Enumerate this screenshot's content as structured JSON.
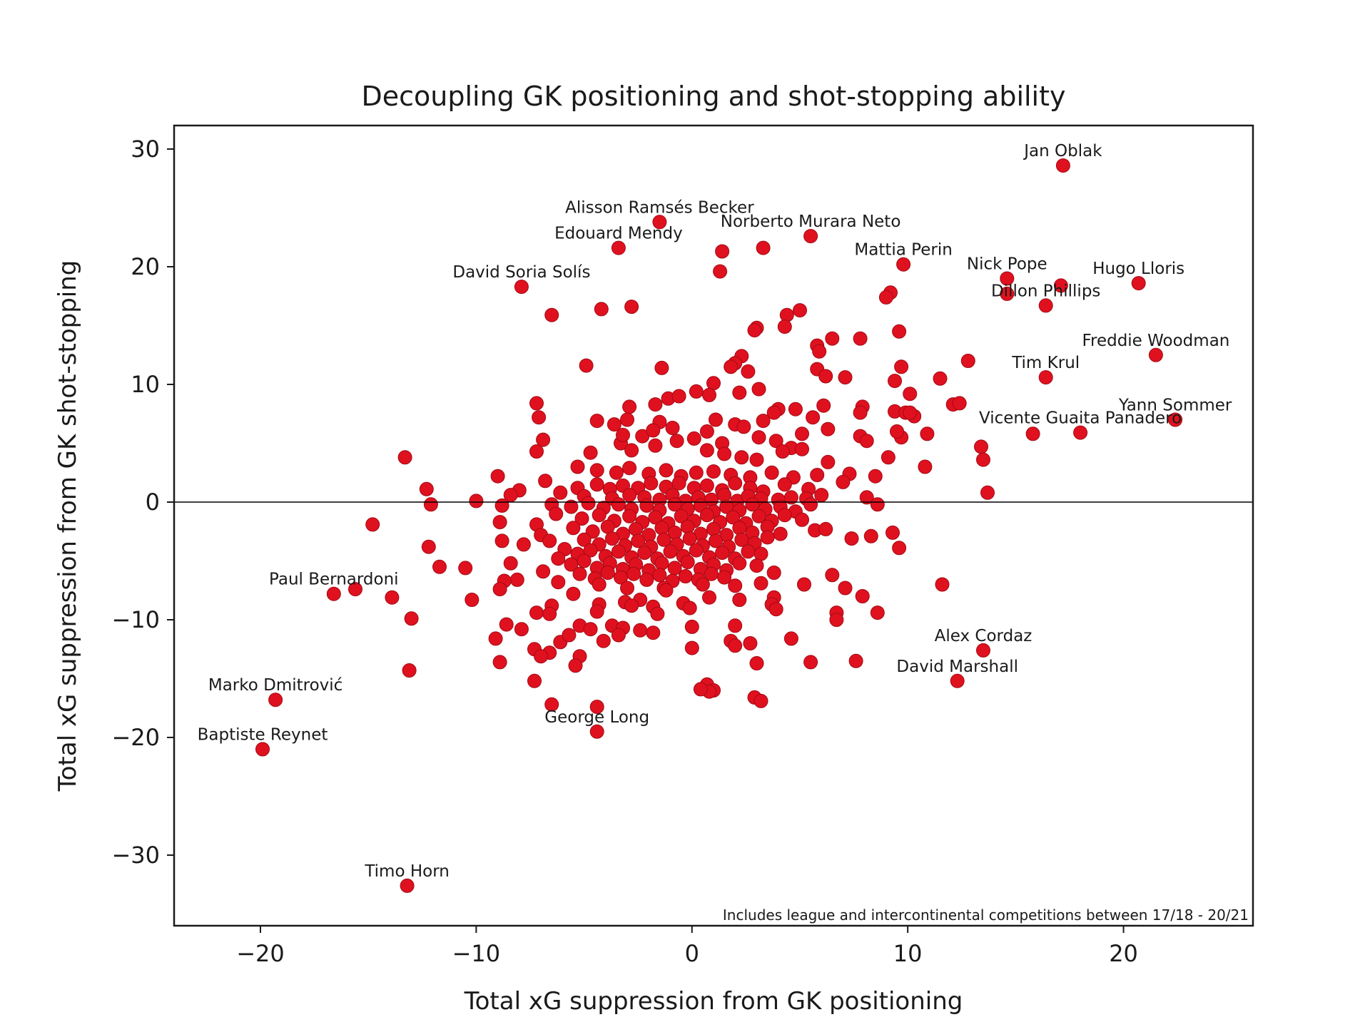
{
  "chart_data": {
    "type": "scatter",
    "title": "Decoupling GK positioning and shot-stopping ability",
    "xlabel": "Total xG suppression from GK positioning",
    "ylabel": "Total xG suppression from GK shot-stopping",
    "xlim": [
      -24,
      26
    ],
    "ylim": [
      -36,
      32
    ],
    "x_ticks": [
      -20,
      -10,
      0,
      10,
      20
    ],
    "y_ticks": [
      -30,
      -20,
      -10,
      0,
      10,
      20,
      30
    ],
    "x_tick_labels": [
      "−20",
      "−10",
      "0",
      "10",
      "20"
    ],
    "y_tick_labels": [
      "−30",
      "−20",
      "−10",
      "0",
      "10",
      "20",
      "30"
    ],
    "reference_line_y": 0,
    "note": "Includes league and intercontinental competitions between 17/18 - 20/21",
    "grid": false,
    "marker_color": "#e0111f",
    "marker_edge_color": "#a10a14",
    "labeled_points": [
      {
        "name": "Jan Oblak",
        "x": 17.2,
        "y": 28.6
      },
      {
        "name": "Alisson Ramsés Becker",
        "x": -1.5,
        "y": 23.8
      },
      {
        "name": "Norberto Murara Neto",
        "x": 5.5,
        "y": 22.6
      },
      {
        "name": "Edouard Mendy",
        "x": -3.4,
        "y": 21.6
      },
      {
        "name": "Mattia Perin",
        "x": 9.8,
        "y": 20.2
      },
      {
        "name": "Nick Pope",
        "x": 14.6,
        "y": 19.0
      },
      {
        "name": "Hugo Lloris",
        "x": 20.7,
        "y": 18.6
      },
      {
        "name": "David Soria Solís",
        "x": -7.9,
        "y": 18.3
      },
      {
        "name": "Dillon Phillips",
        "x": 16.4,
        "y": 16.7
      },
      {
        "name": "Freddie Woodman",
        "x": 21.5,
        "y": 12.5
      },
      {
        "name": "Tim Krul",
        "x": 16.4,
        "y": 10.6
      },
      {
        "name": "Yann Sommer",
        "x": 22.4,
        "y": 7.0
      },
      {
        "name": "Vicente Guaita Panadero",
        "x": 18.0,
        "y": 5.9
      },
      {
        "name": "Paul Bernardoni",
        "x": -16.6,
        "y": -7.8
      },
      {
        "name": "Alex Cordaz",
        "x": 13.5,
        "y": -12.6
      },
      {
        "name": "David Marshall",
        "x": 12.3,
        "y": -15.2
      },
      {
        "name": "Marko Dmitrović",
        "x": -19.3,
        "y": -16.8
      },
      {
        "name": "George Long",
        "x": -4.4,
        "y": -19.5
      },
      {
        "name": "Baptiste Reynet",
        "x": -19.9,
        "y": -21.0
      },
      {
        "name": "Timo Horn",
        "x": -13.2,
        "y": -32.6
      }
    ],
    "points": [
      [
        17.2,
        28.6
      ],
      [
        -1.5,
        23.8
      ],
      [
        5.5,
        22.6
      ],
      [
        -3.4,
        21.6
      ],
      [
        1.4,
        21.3
      ],
      [
        3.3,
        21.6
      ],
      [
        9.8,
        20.2
      ],
      [
        1.3,
        19.6
      ],
      [
        14.6,
        19.0
      ],
      [
        20.7,
        18.6
      ],
      [
        -7.9,
        18.3
      ],
      [
        17.1,
        18.4
      ],
      [
        14.6,
        17.7
      ],
      [
        9.2,
        17.8
      ],
      [
        9.0,
        17.4
      ],
      [
        16.4,
        16.7
      ],
      [
        -6.5,
        15.9
      ],
      [
        -4.2,
        16.4
      ],
      [
        -2.8,
        16.6
      ],
      [
        4.4,
        15.9
      ],
      [
        5.0,
        16.3
      ],
      [
        4.3,
        14.9
      ],
      [
        3.0,
        14.8
      ],
      [
        2.9,
        14.6
      ],
      [
        9.6,
        14.5
      ],
      [
        5.8,
        13.3
      ],
      [
        5.9,
        12.8
      ],
      [
        6.5,
        13.9
      ],
      [
        7.8,
        13.9
      ],
      [
        21.5,
        12.5
      ],
      [
        2.3,
        12.4
      ],
      [
        2.0,
        11.8
      ],
      [
        1.8,
        11.5
      ],
      [
        2.6,
        11.1
      ],
      [
        -1.4,
        11.4
      ],
      [
        -4.9,
        11.6
      ],
      [
        9.7,
        11.5
      ],
      [
        12.8,
        12.0
      ],
      [
        5.8,
        11.3
      ],
      [
        6.2,
        10.7
      ],
      [
        7.1,
        10.6
      ],
      [
        16.4,
        10.6
      ],
      [
        11.5,
        10.5
      ],
      [
        1.0,
        10.1
      ],
      [
        3.1,
        9.6
      ],
      [
        2.2,
        9.3
      ],
      [
        9.4,
        10.3
      ],
      [
        10.1,
        9.2
      ],
      [
        -1.1,
        8.8
      ],
      [
        -0.6,
        9.0
      ],
      [
        0.2,
        9.4
      ],
      [
        0.8,
        9.1
      ],
      [
        -1.7,
        8.3
      ],
      [
        -2.9,
        8.1
      ],
      [
        -7.2,
        8.4
      ],
      [
        4.0,
        7.9
      ],
      [
        3.8,
        7.6
      ],
      [
        4.8,
        7.9
      ],
      [
        5.6,
        7.2
      ],
      [
        6.1,
        8.2
      ],
      [
        7.9,
        8.1
      ],
      [
        7.8,
        7.6
      ],
      [
        9.4,
        7.7
      ],
      [
        9.9,
        7.6
      ],
      [
        10.3,
        7.3
      ],
      [
        10.1,
        7.6
      ],
      [
        12.1,
        8.3
      ],
      [
        12.4,
        8.4
      ],
      [
        -7.1,
        7.2
      ],
      [
        -4.4,
        6.9
      ],
      [
        -3.6,
        6.6
      ],
      [
        -3.0,
        7.0
      ],
      [
        -1.5,
        6.8
      ],
      [
        1.1,
        7.0
      ],
      [
        2.0,
        6.6
      ],
      [
        2.4,
        6.4
      ],
      [
        3.3,
        6.9
      ],
      [
        22.4,
        7.0
      ],
      [
        6.3,
        6.2
      ],
      [
        7.8,
        5.6
      ],
      [
        8.1,
        5.2
      ],
      [
        -6.9,
        5.3
      ],
      [
        -3.3,
        5.0
      ],
      [
        -3.2,
        5.7
      ],
      [
        -2.3,
        5.6
      ],
      [
        -1.8,
        6.1
      ],
      [
        -0.9,
        6.3
      ],
      [
        -0.7,
        5.2
      ],
      [
        0.1,
        5.4
      ],
      [
        0.7,
        6.0
      ],
      [
        1.4,
        5.0
      ],
      [
        3.1,
        5.5
      ],
      [
        3.9,
        5.2
      ],
      [
        4.6,
        4.6
      ],
      [
        5.1,
        5.8
      ],
      [
        9.7,
        5.5
      ],
      [
        9.5,
        6.0
      ],
      [
        10.9,
        5.8
      ],
      [
        15.8,
        5.8
      ],
      [
        18.0,
        5.9
      ],
      [
        -4.7,
        4.2
      ],
      [
        -7.2,
        4.3
      ],
      [
        -2.8,
        4.4
      ],
      [
        -1.7,
        4.8
      ],
      [
        0.7,
        4.4
      ],
      [
        1.5,
        4.1
      ],
      [
        2.3,
        3.8
      ],
      [
        3.0,
        3.6
      ],
      [
        4.2,
        4.3
      ],
      [
        5.1,
        4.5
      ],
      [
        6.3,
        3.4
      ],
      [
        9.1,
        3.8
      ],
      [
        10.8,
        3.0
      ],
      [
        13.4,
        4.7
      ],
      [
        13.5,
        3.6
      ],
      [
        -13.3,
        3.8
      ],
      [
        -5.3,
        3.0
      ],
      [
        -4.4,
        2.7
      ],
      [
        -3.5,
        2.5
      ],
      [
        -2.9,
        2.9
      ],
      [
        -2.0,
        2.4
      ],
      [
        -1.2,
        2.7
      ],
      [
        -0.5,
        2.2
      ],
      [
        0.2,
        2.5
      ],
      [
        1.0,
        2.6
      ],
      [
        1.8,
        2.3
      ],
      [
        2.7,
        2.1
      ],
      [
        3.7,
        2.5
      ],
      [
        4.7,
        2.1
      ],
      [
        5.8,
        2.3
      ],
      [
        7.3,
        2.4
      ],
      [
        7.0,
        1.7
      ],
      [
        8.5,
        2.2
      ],
      [
        -9.0,
        2.2
      ],
      [
        -6.8,
        1.8
      ],
      [
        -5.3,
        1.2
      ],
      [
        -4.4,
        1.5
      ],
      [
        -3.8,
        1.1
      ],
      [
        -3.2,
        1.4
      ],
      [
        -2.5,
        1.2
      ],
      [
        -1.9,
        1.6
      ],
      [
        -1.2,
        1.3
      ],
      [
        -0.6,
        1.6
      ],
      [
        0.1,
        1.2
      ],
      [
        0.7,
        1.4
      ],
      [
        1.4,
        1.0
      ],
      [
        2.0,
        1.6
      ],
      [
        2.7,
        1.2
      ],
      [
        3.3,
        0.9
      ],
      [
        4.3,
        1.5
      ],
      [
        5.4,
        1.1
      ],
      [
        6.0,
        0.6
      ],
      [
        -12.3,
        1.1
      ],
      [
        -8.0,
        1.0
      ],
      [
        -8.4,
        0.6
      ],
      [
        -6.1,
        0.8
      ],
      [
        -5.0,
        0.5
      ],
      [
        -3.7,
        0.3
      ],
      [
        -2.9,
        0.6
      ],
      [
        -2.2,
        0.4
      ],
      [
        -1.5,
        0.2
      ],
      [
        -0.9,
        0.6
      ],
      [
        -0.3,
        0.1
      ],
      [
        0.3,
        0.4
      ],
      [
        0.9,
        0.2
      ],
      [
        1.5,
        0.6
      ],
      [
        2.1,
        0.1
      ],
      [
        2.6,
        0.5
      ],
      [
        3.2,
        0.3
      ],
      [
        4.0,
        0.2
      ],
      [
        4.6,
        0.4
      ],
      [
        5.3,
        0.3
      ],
      [
        8.1,
        0.4
      ],
      [
        13.7,
        0.8
      ],
      [
        -12.1,
        -0.2
      ],
      [
        -10.0,
        0.1
      ],
      [
        -8.8,
        -0.3
      ],
      [
        -6.5,
        -0.2
      ],
      [
        -5.6,
        -0.4
      ],
      [
        -4.8,
        -0.1
      ],
      [
        -4.1,
        -0.5
      ],
      [
        -3.4,
        -0.2
      ],
      [
        -2.8,
        -0.6
      ],
      [
        -2.1,
        -0.3
      ],
      [
        -1.5,
        -0.7
      ],
      [
        -0.8,
        -0.2
      ],
      [
        -0.2,
        -0.6
      ],
      [
        0.4,
        -0.3
      ],
      [
        1.0,
        -0.8
      ],
      [
        1.6,
        -0.4
      ],
      [
        2.2,
        -0.7
      ],
      [
        2.8,
        -0.2
      ],
      [
        3.4,
        -0.6
      ],
      [
        4.1,
        -0.4
      ],
      [
        4.8,
        -0.8
      ],
      [
        5.5,
        -0.2
      ],
      [
        8.6,
        -0.2
      ],
      [
        -6.3,
        -1.0
      ],
      [
        -5.1,
        -1.4
      ],
      [
        -4.3,
        -1.1
      ],
      [
        -3.6,
        -1.6
      ],
      [
        -2.9,
        -1.2
      ],
      [
        -2.3,
        -1.7
      ],
      [
        -1.7,
        -1.3
      ],
      [
        -1.1,
        -1.8
      ],
      [
        -0.5,
        -1.2
      ],
      [
        0.1,
        -1.6
      ],
      [
        0.7,
        -1.1
      ],
      [
        1.3,
        -1.7
      ],
      [
        1.9,
        -1.3
      ],
      [
        2.5,
        -1.8
      ],
      [
        3.1,
        -1.2
      ],
      [
        3.7,
        -1.6
      ],
      [
        4.3,
        -1.1
      ],
      [
        5.1,
        -1.5
      ],
      [
        -14.8,
        -1.9
      ],
      [
        -8.9,
        -1.7
      ],
      [
        -7.2,
        -1.9
      ],
      [
        -5.5,
        -2.2
      ],
      [
        -4.6,
        -2.5
      ],
      [
        -3.9,
        -2.1
      ],
      [
        -3.2,
        -2.7
      ],
      [
        -2.6,
        -2.3
      ],
      [
        -2.0,
        -2.8
      ],
      [
        -1.4,
        -2.2
      ],
      [
        -0.8,
        -2.6
      ],
      [
        -0.2,
        -2.1
      ],
      [
        0.4,
        -2.7
      ],
      [
        1.0,
        -2.3
      ],
      [
        1.6,
        -2.8
      ],
      [
        2.2,
        -2.2
      ],
      [
        2.8,
        -2.6
      ],
      [
        3.5,
        -2.1
      ],
      [
        4.1,
        -2.7
      ],
      [
        5.7,
        -2.4
      ],
      [
        6.2,
        -2.3
      ],
      [
        -7.0,
        -2.8
      ],
      [
        -5.0,
        -3.2
      ],
      [
        -4.3,
        -3.6
      ],
      [
        -3.7,
        -3.1
      ],
      [
        -3.1,
        -3.7
      ],
      [
        -2.5,
        -3.3
      ],
      [
        -1.9,
        -3.8
      ],
      [
        -1.3,
        -3.2
      ],
      [
        -0.7,
        -3.6
      ],
      [
        -0.1,
        -3.1
      ],
      [
        0.5,
        -3.7
      ],
      [
        1.1,
        -3.3
      ],
      [
        1.7,
        -3.8
      ],
      [
        2.3,
        -3.2
      ],
      [
        2.9,
        -3.5
      ],
      [
        3.5,
        -3.0
      ],
      [
        7.4,
        -3.1
      ],
      [
        8.3,
        -2.9
      ],
      [
        9.3,
        -2.6
      ],
      [
        -8.8,
        -3.3
      ],
      [
        -7.8,
        -3.6
      ],
      [
        -6.6,
        -3.3
      ],
      [
        -5.9,
        -4.0
      ],
      [
        -5.3,
        -4.4
      ],
      [
        -4.7,
        -4.1
      ],
      [
        -4.0,
        -4.6
      ],
      [
        -3.4,
        -4.2
      ],
      [
        -2.8,
        -4.7
      ],
      [
        -2.2,
        -4.3
      ],
      [
        -1.6,
        -4.8
      ],
      [
        -1.0,
        -4.2
      ],
      [
        -0.4,
        -4.6
      ],
      [
        0.2,
        -4.1
      ],
      [
        0.8,
        -4.7
      ],
      [
        1.4,
        -4.3
      ],
      [
        2.0,
        -4.8
      ],
      [
        2.6,
        -4.2
      ],
      [
        3.2,
        -4.4
      ],
      [
        9.6,
        -3.9
      ],
      [
        -12.2,
        -3.8
      ],
      [
        -6.2,
        -4.8
      ],
      [
        -5.6,
        -5.3
      ],
      [
        -5.0,
        -5.0
      ],
      [
        -4.4,
        -5.6
      ],
      [
        -3.8,
        -5.2
      ],
      [
        -3.2,
        -5.7
      ],
      [
        -2.6,
        -5.3
      ],
      [
        -2.0,
        -5.8
      ],
      [
        -1.4,
        -5.2
      ],
      [
        -0.8,
        -5.6
      ],
      [
        -0.2,
        -5.1
      ],
      [
        0.4,
        -5.7
      ],
      [
        1.0,
        -5.3
      ],
      [
        1.6,
        -5.8
      ],
      [
        2.2,
        -5.2
      ],
      [
        3.0,
        -5.4
      ],
      [
        -8.4,
        -5.2
      ],
      [
        -10.5,
        -5.6
      ],
      [
        -11.7,
        -5.5
      ],
      [
        -6.9,
        -5.9
      ],
      [
        -5.2,
        -6.1
      ],
      [
        -4.5,
        -6.5
      ],
      [
        -3.9,
        -6.0
      ],
      [
        -3.3,
        -6.4
      ],
      [
        -2.7,
        -6.1
      ],
      [
        -2.1,
        -6.6
      ],
      [
        -1.5,
        -6.2
      ],
      [
        -0.9,
        -6.7
      ],
      [
        -0.3,
        -6.3
      ],
      [
        0.3,
        -6.6
      ],
      [
        0.9,
        -6.1
      ],
      [
        1.5,
        -6.4
      ],
      [
        3.8,
        -6.0
      ],
      [
        6.5,
        -6.2
      ],
      [
        -8.1,
        -6.6
      ],
      [
        -8.7,
        -6.7
      ],
      [
        -6.2,
        -6.8
      ],
      [
        -4.3,
        -7.0
      ],
      [
        -3.0,
        -7.3
      ],
      [
        -1.3,
        -7.3
      ],
      [
        0.5,
        -7.0
      ],
      [
        2.0,
        -7.1
      ],
      [
        3.2,
        -6.9
      ],
      [
        5.2,
        -7.0
      ],
      [
        7.1,
        -7.3
      ],
      [
        11.6,
        -7.0
      ],
      [
        -15.6,
        -7.4
      ],
      [
        -16.6,
        -7.8
      ],
      [
        -13.9,
        -8.1
      ],
      [
        -10.2,
        -8.3
      ],
      [
        -8.9,
        -7.4
      ],
      [
        -6.5,
        -8.8
      ],
      [
        -5.5,
        -7.8
      ],
      [
        -4.3,
        -8.7
      ],
      [
        -3.1,
        -8.5
      ],
      [
        -2.4,
        -8.3
      ],
      [
        -1.8,
        -8.9
      ],
      [
        -1.2,
        -7.5
      ],
      [
        -0.4,
        -8.6
      ],
      [
        0.8,
        -8.1
      ],
      [
        2.2,
        -8.3
      ],
      [
        3.8,
        -8.1
      ],
      [
        6.7,
        -9.4
      ],
      [
        7.9,
        -8.0
      ],
      [
        8.6,
        -9.4
      ],
      [
        -13.0,
        -9.9
      ],
      [
        -7.2,
        -9.4
      ],
      [
        -6.6,
        -9.5
      ],
      [
        -4.4,
        -9.3
      ],
      [
        -2.8,
        -8.8
      ],
      [
        -1.6,
        -9.5
      ],
      [
        -0.1,
        -9.0
      ],
      [
        3.7,
        -8.7
      ],
      [
        3.9,
        -9.1
      ],
      [
        -8.6,
        -10.4
      ],
      [
        -7.9,
        -10.8
      ],
      [
        -5.2,
        -10.5
      ],
      [
        -4.7,
        -10.8
      ],
      [
        -3.7,
        -10.5
      ],
      [
        -3.2,
        -10.7
      ],
      [
        -2.4,
        -10.9
      ],
      [
        -1.8,
        -11.1
      ],
      [
        0.0,
        -10.6
      ],
      [
        2.0,
        -10.5
      ],
      [
        6.7,
        -10.0
      ],
      [
        -9.1,
        -11.6
      ],
      [
        -6.1,
        -11.9
      ],
      [
        -5.7,
        -11.3
      ],
      [
        -4.1,
        -11.8
      ],
      [
        -3.4,
        -11.3
      ],
      [
        1.8,
        -11.8
      ],
      [
        2.0,
        -12.2
      ],
      [
        2.7,
        -12.0
      ],
      [
        4.6,
        -11.6
      ],
      [
        -7.3,
        -12.5
      ],
      [
        -6.6,
        -12.8
      ],
      [
        -7.0,
        -13.1
      ],
      [
        -5.2,
        -13.1
      ],
      [
        -5.4,
        -13.9
      ],
      [
        -8.9,
        -13.6
      ],
      [
        0.0,
        -12.4
      ],
      [
        3.0,
        -13.7
      ],
      [
        5.5,
        -13.6
      ],
      [
        7.6,
        -13.5
      ],
      [
        13.5,
        -12.6
      ],
      [
        -13.1,
        -14.3
      ],
      [
        -7.3,
        -15.2
      ],
      [
        12.3,
        -15.2
      ],
      [
        0.7,
        -15.5
      ],
      [
        1.0,
        -16.0
      ],
      [
        0.8,
        -16.1
      ],
      [
        0.4,
        -15.9
      ],
      [
        2.9,
        -16.6
      ],
      [
        3.2,
        -16.9
      ],
      [
        -19.3,
        -16.8
      ],
      [
        -6.5,
        -17.2
      ],
      [
        -4.4,
        -17.4
      ],
      [
        -4.4,
        -19.5
      ],
      [
        -19.9,
        -21.0
      ],
      [
        -13.2,
        -32.6
      ]
    ]
  }
}
